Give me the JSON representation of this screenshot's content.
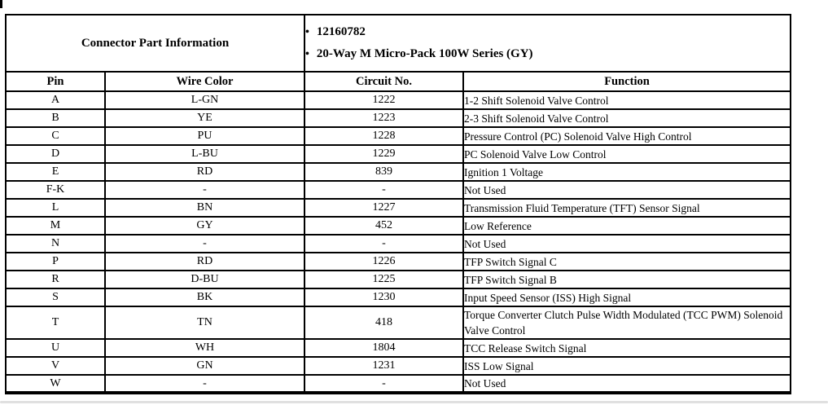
{
  "page": {
    "background": "#ffffff",
    "border_color": "#000000",
    "scrollbar_color": "#e0e0e0"
  },
  "connector_info": {
    "title": "Connector Part Information",
    "bullet_glyph": "•",
    "bullets": [
      "12160782",
      "20-Way M Micro-Pack 100W Series (GY)"
    ]
  },
  "table": {
    "headers": [
      "Pin",
      "Wire Color",
      "Circuit No.",
      "Function"
    ],
    "rows": [
      {
        "pin": "A",
        "wire_color": "L-GN",
        "circuit": "1222",
        "function": "1-2 Shift Solenoid Valve Control"
      },
      {
        "pin": "B",
        "wire_color": "YE",
        "circuit": "1223",
        "function": "2-3 Shift Solenoid Valve Control"
      },
      {
        "pin": "C",
        "wire_color": "PU",
        "circuit": "1228",
        "function": "Pressure Control (PC) Solenoid Valve High Control"
      },
      {
        "pin": "D",
        "wire_color": "L-BU",
        "circuit": "1229",
        "function": "PC Solenoid Valve Low Control"
      },
      {
        "pin": "E",
        "wire_color": "RD",
        "circuit": "839",
        "function": "Ignition 1 Voltage"
      },
      {
        "pin": "F-K",
        "wire_color": "-",
        "circuit": "-",
        "function": "Not Used"
      },
      {
        "pin": "L",
        "wire_color": "BN",
        "circuit": "1227",
        "function": "Transmission Fluid Temperature (TFT) Sensor Signal"
      },
      {
        "pin": "M",
        "wire_color": "GY",
        "circuit": "452",
        "function": "Low Reference"
      },
      {
        "pin": "N",
        "wire_color": "-",
        "circuit": "-",
        "function": "Not Used"
      },
      {
        "pin": "P",
        "wire_color": "RD",
        "circuit": "1226",
        "function": "TFP Switch Signal C"
      },
      {
        "pin": "R",
        "wire_color": "D-BU",
        "circuit": "1225",
        "function": "TFP Switch Signal B"
      },
      {
        "pin": "S",
        "wire_color": "BK",
        "circuit": "1230",
        "function": "Input Speed Sensor (ISS) High Signal"
      },
      {
        "pin": "T",
        "wire_color": "TN",
        "circuit": "418",
        "function": "Torque Converter Clutch Pulse Width Modulated (TCC PWM) Solenoid Valve Control"
      },
      {
        "pin": "U",
        "wire_color": "WH",
        "circuit": "1804",
        "function": "TCC Release Switch Signal"
      },
      {
        "pin": "V",
        "wire_color": "GN",
        "circuit": "1231",
        "function": "ISS Low Signal"
      },
      {
        "pin": "W",
        "wire_color": "-",
        "circuit": "-",
        "function": "Not Used"
      }
    ]
  }
}
